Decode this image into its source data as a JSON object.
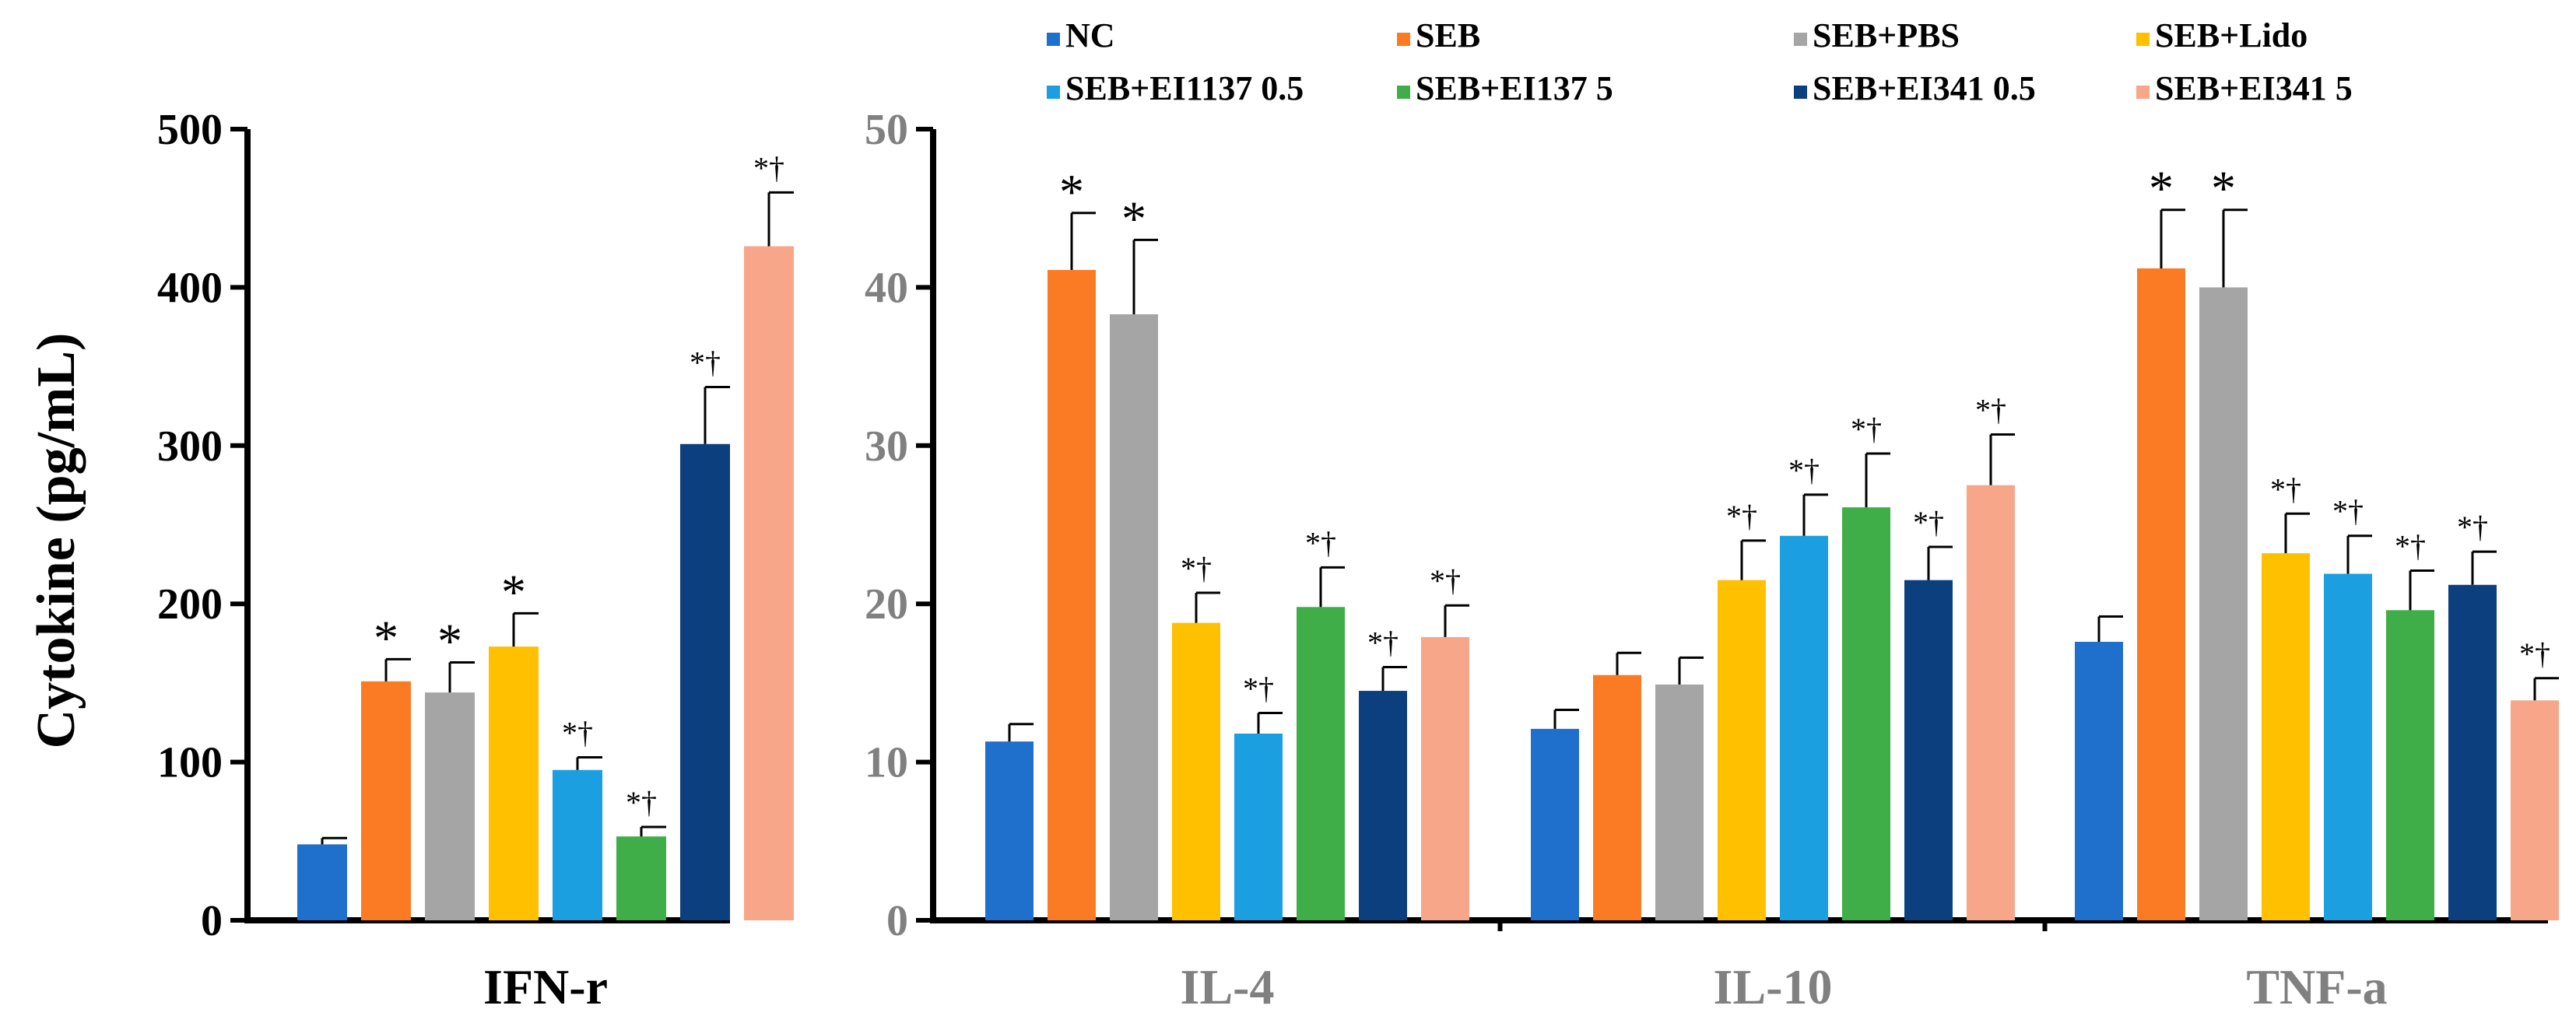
{
  "chart_data": {
    "type": "bar",
    "ylabel": "Cytokine (pg/mL)",
    "series_names": [
      "NC",
      "SEB",
      "SEB+PBS",
      "SEB+Lido",
      "SEB+EI1137 0.5",
      "SEB+EI137 5",
      "SEB+EI341 0.5",
      "SEB+EI341 5"
    ],
    "colors": [
      "#1f6fcc",
      "#fb7b24",
      "#a5a5a5",
      "#ffc000",
      "#1c9fe0",
      "#3fae49",
      "#0b3f7e",
      "#f8a68a"
    ],
    "legend_position": "top",
    "panels": [
      {
        "name": "left",
        "ylim": [
          0,
          500
        ],
        "yticks": [
          "0",
          "100",
          "200",
          "300",
          "400",
          "500"
        ],
        "categories": [
          {
            "label": "IFN-r",
            "values": [
              48,
              151,
              144,
              173,
              95,
              53,
              301,
              426
            ],
            "errors": [
              4,
              14,
              19,
              21,
              8,
              6,
              36,
              34
            ],
            "annotations": [
              "",
              "*",
              "*",
              "*",
              "*†",
              "*†",
              "*†",
              "*†"
            ]
          }
        ]
      },
      {
        "name": "right",
        "ylim": [
          0,
          50
        ],
        "yticks": [
          "0",
          "10",
          "20",
          "30",
          "40",
          "50"
        ],
        "categories": [
          {
            "label": "IL-4",
            "values": [
              11.3,
              41.1,
              38.3,
              18.8,
              11.8,
              19.8,
              14.5,
              17.9
            ],
            "errors": [
              1.1,
              3.6,
              4.7,
              1.9,
              1.3,
              2.5,
              1.5,
              2.0
            ],
            "annotations": [
              "",
              "*",
              "*",
              "*†",
              "*†",
              "*†",
              "*†",
              "*†"
            ]
          },
          {
            "label": "IL-10",
            "values": [
              12.1,
              15.5,
              14.9,
              21.5,
              24.3,
              26.1,
              21.5,
              27.5
            ],
            "errors": [
              1.2,
              1.4,
              1.7,
              2.5,
              2.6,
              3.4,
              2.1,
              3.2
            ],
            "annotations": [
              "",
              "",
              "",
              "*†",
              "*†",
              "*†",
              "*†",
              "*†"
            ]
          },
          {
            "label": "TNF-a",
            "values": [
              17.6,
              41.2,
              40.0,
              23.2,
              21.9,
              19.6,
              21.2,
              13.9
            ],
            "errors": [
              1.6,
              3.7,
              4.9,
              2.5,
              2.4,
              2.5,
              2.1,
              1.4
            ],
            "annotations": [
              "",
              "*",
              "*",
              "*†",
              "*†",
              "*†",
              "*†",
              "*†"
            ]
          }
        ]
      }
    ]
  }
}
